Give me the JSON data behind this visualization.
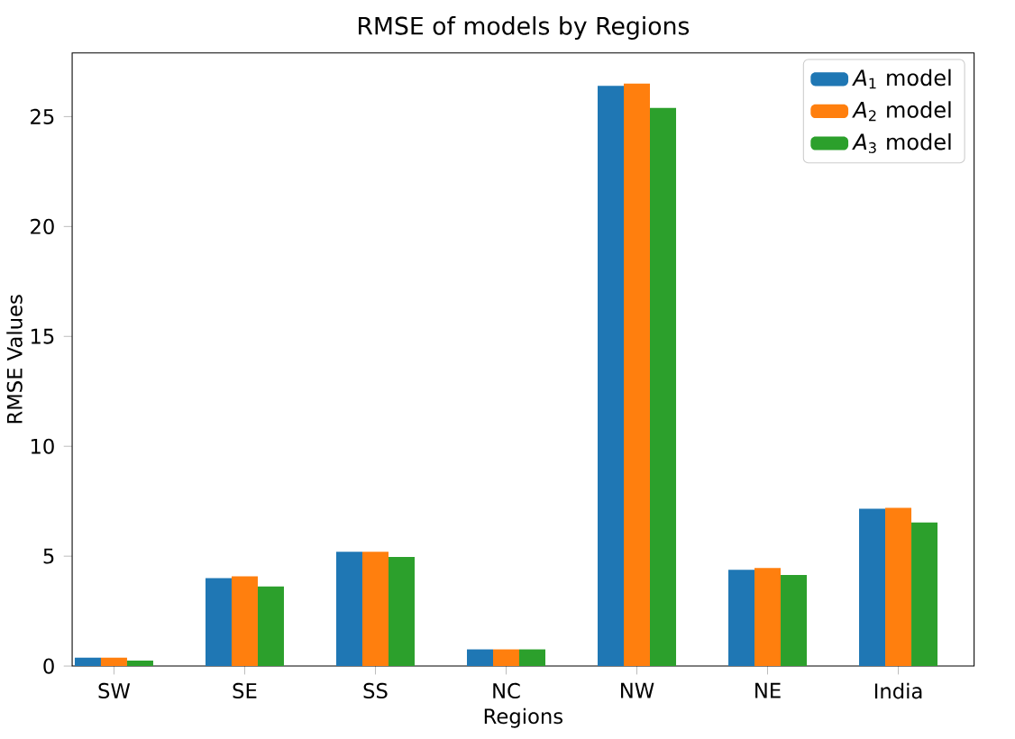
{
  "chart_data": {
    "type": "bar",
    "title": "RMSE of models by Regions",
    "xlabel": "Regions",
    "ylabel": "RMSE Values",
    "categories": [
      "SW",
      "SE",
      "SS",
      "NC",
      "NW",
      "NE",
      "India"
    ],
    "series": [
      {
        "name": "*A*$_{1}$ model",
        "color": "#1f77b4",
        "values": [
          0.38,
          4.0,
          5.2,
          0.76,
          26.4,
          4.38,
          7.16
        ]
      },
      {
        "name": "*A*$_{2}$ model",
        "color": "#ff7f0e",
        "values": [
          0.38,
          4.08,
          5.2,
          0.76,
          26.5,
          4.46,
          7.2
        ]
      },
      {
        "name": "*A*$_{3}$ model",
        "color": "#2ca02c",
        "values": [
          0.25,
          3.62,
          4.96,
          0.76,
          25.4,
          4.14,
          6.53
        ]
      }
    ],
    "ylim": [
      0,
      27.9
    ],
    "yticks": [
      0,
      5,
      10,
      15,
      20,
      25
    ],
    "legend": "top right",
    "grid": false
  }
}
